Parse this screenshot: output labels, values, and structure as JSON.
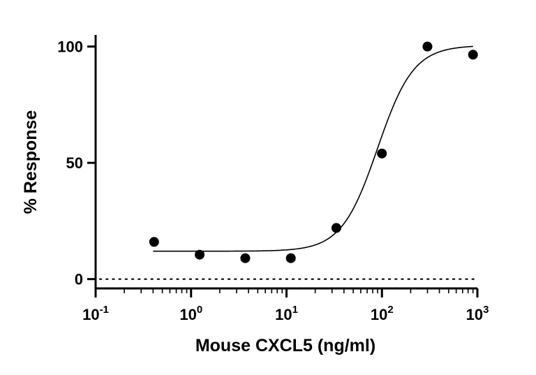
{
  "chart_data": {
    "type": "scatter",
    "title": "",
    "xlabel": "Mouse CXCL5 (ng/ml)",
    "ylabel": "% Response",
    "x_scale": "log10",
    "xlim": [
      0.1,
      1000
    ],
    "ylim": [
      -4,
      105
    ],
    "x_ticks": [
      {
        "value": 0.1,
        "base": "10",
        "exp": "-1"
      },
      {
        "value": 1,
        "base": "10",
        "exp": "0"
      },
      {
        "value": 10,
        "base": "10",
        "exp": "1"
      },
      {
        "value": 100,
        "base": "10",
        "exp": "2"
      },
      {
        "value": 1000,
        "base": "10",
        "exp": "3"
      }
    ],
    "y_ticks": [
      {
        "value": 0,
        "label": "0"
      },
      {
        "value": 50,
        "label": "50"
      },
      {
        "value": 100,
        "label": "100"
      }
    ],
    "points": [
      {
        "x": 0.41,
        "y": 16
      },
      {
        "x": 1.23,
        "y": 10.5
      },
      {
        "x": 3.7,
        "y": 9
      },
      {
        "x": 11.1,
        "y": 9
      },
      {
        "x": 33.3,
        "y": 22
      },
      {
        "x": 100,
        "y": 54
      },
      {
        "x": 300,
        "y": 100
      },
      {
        "x": 900,
        "y": 96.5
      }
    ],
    "fit": {
      "model": "4PL",
      "bottom": 12,
      "top": 100.5,
      "ec50": 90,
      "hill": 2.3,
      "x_range": [
        0.4,
        900
      ]
    },
    "reference_line": {
      "y": 0,
      "style": "dotted"
    },
    "grid": false,
    "legend": "none"
  }
}
